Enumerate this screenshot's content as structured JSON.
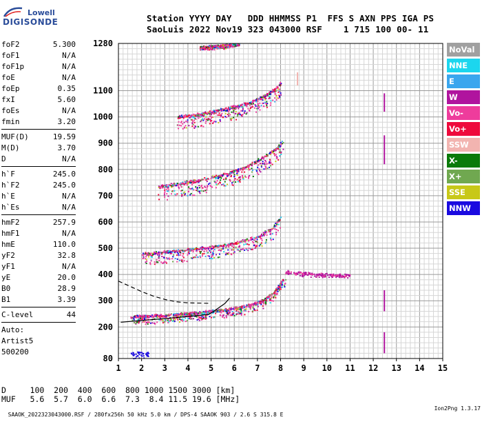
{
  "logo": {
    "top": "Lowell",
    "main": "DIGISONDE"
  },
  "header": {
    "line1": "Station YYYY DAY   DDD HHMMSS P1  FFS S AXN PPS IGA PS",
    "line2": "SaoLuis 2022 Nov19 323 043000 RSF    1 715 100 00- 11"
  },
  "params": {
    "group1": [
      {
        "k": "foF2",
        "v": "5.300"
      },
      {
        "k": "foF1",
        "v": "N/A"
      },
      {
        "k": "foF1p",
        "v": "N/A"
      },
      {
        "k": "foE",
        "v": "N/A"
      },
      {
        "k": "foEp",
        "v": "0.35"
      },
      {
        "k": "fxI",
        "v": "5.60"
      },
      {
        "k": "foEs",
        "v": "N/A"
      },
      {
        "k": "fmin",
        "v": "3.20"
      }
    ],
    "group2": [
      {
        "k": "MUF(D)",
        "v": "19.59"
      },
      {
        "k": "M(D)",
        "v": "3.70"
      },
      {
        "k": "D",
        "v": "N/A"
      }
    ],
    "group3": [
      {
        "k": "h`F",
        "v": "245.0"
      },
      {
        "k": "h`F2",
        "v": "245.0"
      },
      {
        "k": "h`E",
        "v": "N/A"
      },
      {
        "k": "h`Es",
        "v": "N/A"
      }
    ],
    "group4": [
      {
        "k": "hmF2",
        "v": "257.9"
      },
      {
        "k": "hmF1",
        "v": "N/A"
      },
      {
        "k": "hmE",
        "v": "110.0"
      },
      {
        "k": "yF2",
        "v": "32.8"
      },
      {
        "k": "yF1",
        "v": "N/A"
      },
      {
        "k": "yE",
        "v": "20.0"
      },
      {
        "k": "B0",
        "v": "28.9"
      },
      {
        "k": "B1",
        "v": "3.39"
      }
    ],
    "group5": [
      {
        "k": "C-level",
        "v": "44"
      }
    ]
  },
  "scaling": {
    "line1": "Auto:",
    "line2": "Artist5",
    "line3": "500200"
  },
  "bottom": {
    "row1": "D     100  200  400  600  800 1000 1500 3000 [km]",
    "row2": "MUF   5.6  5.7  6.0  6.6  7.3  8.4 11.5 19.6 [MHz]"
  },
  "footer": {
    "left": "SAAOK_2022323043000.RSF / 280fx256h 50 kHz 5.0 km / DPS-4 SAAOK 903 / 2.6 S 315.8 E",
    "right": "Ion2Png 1.3.17"
  },
  "legend": [
    {
      "label": "NoVal",
      "color": "#a0a0a0"
    },
    {
      "label": "NNE",
      "color": "#1cd6ee"
    },
    {
      "label": "E",
      "color": "#3aa6ee"
    },
    {
      "label": "W",
      "color": "#b0149e"
    },
    {
      "label": "Vo-",
      "color": "#ee3c9c"
    },
    {
      "label": "Vo+",
      "color": "#ee0a3c"
    },
    {
      "label": "SSW",
      "color": "#f2b4b0"
    },
    {
      "label": "X-",
      "color": "#0a7a0a"
    },
    {
      "label": "X+",
      "color": "#70a850"
    },
    {
      "label": "SSE",
      "color": "#c8c818"
    },
    {
      "label": "NNW",
      "color": "#1a0ae0"
    }
  ],
  "chart_data": {
    "type": "scatter",
    "xlabel": "",
    "ylabel": "",
    "xlim": [
      1,
      15
    ],
    "ylim": [
      80,
      1280
    ],
    "x_ticks": [
      1,
      2,
      3,
      4,
      5,
      6,
      7,
      8,
      9,
      10,
      11,
      12,
      13,
      14,
      15
    ],
    "y_ticks": [
      80,
      200,
      300,
      400,
      500,
      600,
      700,
      800,
      900,
      1000,
      1100,
      1280
    ],
    "grid": true,
    "ionogram_traces": [
      {
        "name": "1-hop O trace",
        "points": [
          [
            1.5,
            240
          ],
          [
            2.5,
            242
          ],
          [
            3.5,
            248
          ],
          [
            4.5,
            255
          ],
          [
            5.5,
            265
          ],
          [
            6.5,
            280
          ],
          [
            7.2,
            300
          ],
          [
            7.7,
            330
          ],
          [
            8.0,
            370
          ],
          [
            8.2,
            390
          ]
        ]
      },
      {
        "name": "2-hop trace",
        "points": [
          [
            2.0,
            478
          ],
          [
            3.0,
            485
          ],
          [
            4.0,
            495
          ],
          [
            5.0,
            505
          ],
          [
            6.0,
            520
          ],
          [
            7.0,
            545
          ],
          [
            7.6,
            575
          ],
          [
            8.0,
            620
          ]
        ]
      },
      {
        "name": "3-hop trace",
        "points": [
          [
            2.7,
            735
          ],
          [
            3.5,
            745
          ],
          [
            4.5,
            760
          ],
          [
            5.5,
            780
          ],
          [
            6.5,
            810
          ],
          [
            7.3,
            850
          ],
          [
            7.8,
            880
          ],
          [
            8.1,
            910
          ]
        ]
      },
      {
        "name": "4-hop trace",
        "points": [
          [
            3.5,
            1000
          ],
          [
            4.5,
            1010
          ],
          [
            5.5,
            1030
          ],
          [
            6.5,
            1050
          ],
          [
            7.3,
            1080
          ],
          [
            7.8,
            1110
          ],
          [
            8.0,
            1130
          ]
        ]
      },
      {
        "name": "5-hop trace",
        "points": [
          [
            4.5,
            1265
          ],
          [
            5.5,
            1270
          ],
          [
            6.2,
            1280
          ]
        ]
      },
      {
        "name": "X spread",
        "points": [
          [
            8.2,
            410
          ],
          [
            9.0,
            405
          ],
          [
            9.5,
            400
          ],
          [
            10.0,
            400
          ],
          [
            10.5,
            398
          ],
          [
            11.0,
            398
          ]
        ]
      }
    ],
    "profile_curves": [
      {
        "name": "solid",
        "points": [
          [
            1.1,
            218
          ],
          [
            2.0,
            225
          ],
          [
            3.0,
            232
          ],
          [
            4.0,
            240
          ],
          [
            4.9,
            248
          ],
          [
            5.2,
            265
          ],
          [
            5.6,
            290
          ],
          [
            5.8,
            310
          ]
        ]
      },
      {
        "name": "dashed",
        "points": [
          [
            1.0,
            375
          ],
          [
            1.5,
            355
          ],
          [
            2.0,
            335
          ],
          [
            2.5,
            318
          ],
          [
            3.0,
            305
          ],
          [
            3.5,
            296
          ],
          [
            4.0,
            292
          ],
          [
            5.0,
            290
          ]
        ]
      }
    ]
  }
}
